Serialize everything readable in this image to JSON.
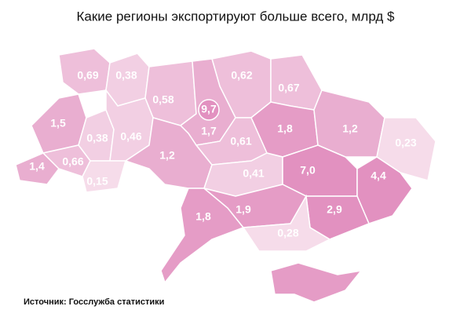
{
  "chart_data": {
    "type": "choropleth",
    "title": "Какие регионы экспортируют больше всего, млрд $",
    "source": "Источник: Госслужба статистики",
    "values": [
      0.69,
      0.38,
      0.58,
      9.7,
      0.62,
      0.67,
      1.5,
      0.38,
      0.46,
      1.7,
      1.8,
      1.2,
      0.23,
      1.4,
      0.66,
      0.15,
      1.2,
      0.61,
      0.41,
      7.0,
      4.4,
      1.8,
      1.9,
      2.9,
      0.28
    ],
    "value_labels": [
      "0,69",
      "0,38",
      "0,58",
      "9,7",
      "0,62",
      "0,67",
      "1,5",
      "0,38",
      "0,46",
      "1,7",
      "1,8",
      "1,2",
      "0,23",
      "1,4",
      "0,66",
      "0,15",
      "1,2",
      "0,61",
      "0,41",
      "7,0",
      "4,4",
      "1,8",
      "1,9",
      "2,9",
      "0,28"
    ],
    "colors": [
      "#eebfda",
      "#f2cfe3",
      "#eebfda",
      "#e291c0",
      "#eebfda",
      "#eebfda",
      "#e9aed0",
      "#f2cfe3",
      "#f2cfe3",
      "#e9aed0",
      "#e59cc6",
      "#e9aed0",
      "#f6dcea",
      "#e9aed0",
      "#eebfda",
      "#f6dcea",
      "#e9aed0",
      "#eebfda",
      "#f2cfe3",
      "#e291c0",
      "#e291c0",
      "#e59cc6",
      "#e59cc6",
      "#e291c0",
      "#f6dcea"
    ]
  }
}
